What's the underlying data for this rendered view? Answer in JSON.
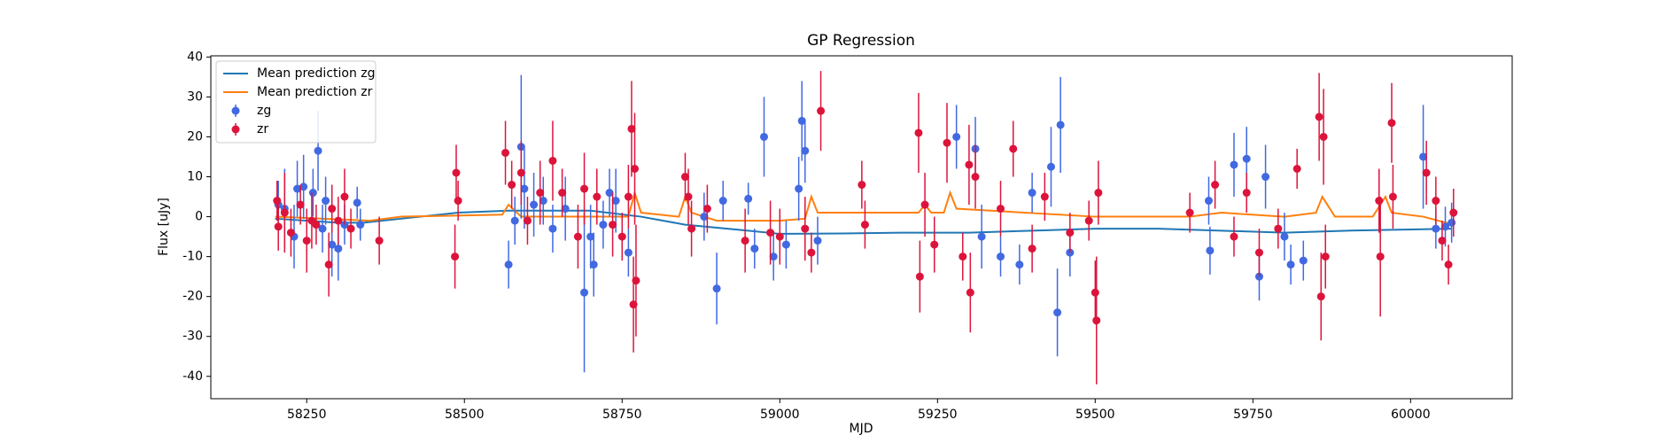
{
  "chart_data": {
    "type": "scatter",
    "title": "GP Regression",
    "xlabel": "MJD",
    "ylabel": "Flux [uJy]",
    "xlim": [
      58098,
      60161
    ],
    "ylim": [
      -45.6,
      40.3
    ],
    "xticks": [
      58250,
      58500,
      58750,
      59000,
      59250,
      59500,
      59750,
      60000
    ],
    "yticks": [
      -40,
      -30,
      -20,
      -10,
      0,
      10,
      20,
      30,
      40
    ],
    "legend": "upper left",
    "series": [
      {
        "name": "Mean prediction zg",
        "type": "line",
        "color": "#1f77b4",
        "x": [
          58200,
          58300,
          58340,
          58400,
          58490,
          58570,
          58600,
          58700,
          58780,
          58850,
          58950,
          59000,
          59100,
          59200,
          59300,
          59400,
          59500,
          59600,
          59700,
          59800,
          59900,
          60000,
          60065
        ],
        "values": [
          -0.5,
          -1.5,
          -1.5,
          -0.5,
          1,
          1.5,
          1.5,
          1.5,
          0,
          -2,
          -3.5,
          -4.3,
          -4.2,
          -4,
          -4,
          -3.5,
          -3,
          -3,
          -3.5,
          -4,
          -3.5,
          -3.2,
          -3
        ]
      },
      {
        "name": "Mean prediction zr",
        "type": "line",
        "color": "#ff7f0e",
        "x": [
          58200,
          58350,
          58400,
          58560,
          58570,
          58590,
          58760,
          58770,
          58780,
          58840,
          58850,
          58860,
          58900,
          59000,
          59040,
          59050,
          59060,
          59200,
          59220,
          59230,
          59240,
          59260,
          59270,
          59280,
          59500,
          59600,
          59650,
          59700,
          59800,
          59850,
          59860,
          59880,
          59940,
          59960,
          59970,
          60020,
          60068
        ],
        "values": [
          0,
          -1,
          0,
          0.5,
          3,
          0,
          0,
          6,
          1,
          0,
          5,
          1,
          -1,
          -1,
          -0.5,
          5,
          1,
          1,
          1,
          3,
          1,
          1,
          6,
          2,
          0,
          0,
          0,
          1,
          0,
          1,
          5,
          0,
          0,
          5,
          1,
          0,
          -2
        ]
      },
      {
        "name": "zg",
        "type": "errorbar",
        "color": "#4169e1",
        "x": [
          58205,
          58215,
          58230,
          58235,
          58245,
          58260,
          58268,
          58275,
          58280,
          58290,
          58300,
          58310,
          58330,
          58335,
          58570,
          58580,
          58590,
          58595,
          58610,
          58625,
          58640,
          58660,
          58690,
          58700,
          58705,
          58720,
          58730,
          58740,
          58760,
          58880,
          58900,
          58910,
          58950,
          58960,
          58975,
          58990,
          59010,
          59030,
          59035,
          59040,
          59060,
          59280,
          59310,
          59320,
          59350,
          59380,
          59400,
          59430,
          59440,
          59445,
          59460,
          59680,
          59682,
          59720,
          59740,
          59760,
          59770,
          59800,
          59810,
          59830,
          60020,
          60040,
          60055,
          60065
        ],
        "values": [
          3,
          2,
          -5,
          7,
          7.5,
          6,
          16.5,
          -3,
          4,
          -7,
          -8,
          -2,
          3.5,
          -2,
          -12,
          -1,
          17.5,
          7,
          3,
          4,
          -3,
          2,
          -19,
          -5,
          -12,
          -2,
          6,
          4,
          -9,
          0,
          -18,
          4,
          4.5,
          -8,
          20,
          -10,
          -7,
          7,
          24,
          16.5,
          -6,
          20,
          17,
          -5,
          -10,
          -12,
          6,
          12.5,
          -24,
          23,
          -9,
          4,
          -8.5,
          13,
          14.5,
          -15,
          10,
          -5,
          -12,
          -11,
          15,
          -3,
          -2.5,
          -1.5
        ],
        "errors": [
          6,
          10,
          8,
          7,
          8,
          6,
          10,
          6,
          6,
          8,
          8,
          5,
          4,
          4,
          6,
          6,
          18,
          10,
          8,
          6,
          6,
          8,
          20,
          8,
          8,
          6,
          6,
          8,
          6,
          6,
          9,
          5,
          4,
          5,
          10,
          6,
          6,
          8,
          10,
          8,
          6,
          8,
          8,
          8,
          5,
          5,
          5,
          10,
          11,
          12,
          6,
          6,
          6,
          8,
          8,
          6,
          8,
          6,
          5,
          5,
          13,
          5,
          5,
          5
        ]
      },
      {
        "name": "zr",
        "type": "errorbar",
        "color": "#dc143c",
        "x": [
          58203,
          58205,
          58215,
          58225,
          58240,
          58250,
          58258,
          58265,
          58285,
          58290,
          58300,
          58310,
          58320,
          58365,
          58485,
          58487,
          58490,
          58565,
          58575,
          58590,
          58600,
          58620,
          58640,
          58655,
          58680,
          58690,
          58710,
          58735,
          58750,
          58760,
          58765,
          58768,
          58770,
          58772,
          58850,
          58855,
          58860,
          58885,
          58945,
          58985,
          59000,
          59040,
          59050,
          59065,
          59130,
          59135,
          59220,
          59222,
          59230,
          59245,
          59265,
          59290,
          59300,
          59302,
          59310,
          59350,
          59370,
          59400,
          59420,
          59460,
          59490,
          59500,
          59502,
          59505,
          59650,
          59690,
          59720,
          59740,
          59760,
          59790,
          59820,
          59855,
          59858,
          59862,
          59865,
          59950,
          59952,
          59970,
          59972,
          60025,
          60040,
          60050,
          60060,
          60068
        ],
        "values": [
          4,
          -2.5,
          1,
          -4,
          3,
          -6,
          -1,
          -2,
          -12,
          2,
          -1,
          5,
          -3,
          -6,
          -10,
          11,
          4,
          16,
          8,
          11,
          -1,
          6,
          14,
          6,
          -5,
          7,
          5,
          -2,
          -5,
          5,
          22,
          -22,
          12,
          -16,
          10,
          5,
          -3,
          2,
          -6,
          -4,
          -5,
          -3,
          -9,
          26.5,
          8,
          -2,
          21,
          -15,
          3,
          -7,
          18.5,
          -10,
          13,
          -19,
          10,
          2,
          17,
          -8,
          5,
          -4,
          -1,
          -19,
          -26,
          6,
          1,
          8,
          -5,
          6,
          -9,
          -3,
          12,
          25,
          -20,
          20,
          -10,
          4,
          -10,
          23.5,
          5,
          11,
          4,
          -6,
          -12,
          1
        ],
        "errors": [
          5,
          6,
          10,
          6,
          5,
          8,
          7,
          5,
          8,
          6,
          6,
          7,
          5,
          6,
          8,
          7,
          5,
          8,
          6,
          8,
          6,
          8,
          10,
          6,
          8,
          9,
          7,
          8,
          6,
          8,
          12,
          12,
          14,
          14,
          6,
          7,
          7,
          6,
          8,
          8,
          7,
          8,
          5,
          10,
          6,
          6,
          10,
          9,
          8,
          7,
          10,
          6,
          10,
          10,
          8,
          7,
          7,
          6,
          6,
          5,
          5,
          8,
          16,
          8,
          5,
          6,
          5,
          5,
          6,
          5,
          5,
          11,
          11,
          12,
          8,
          8,
          15,
          10,
          8,
          8,
          6,
          5,
          5,
          6
        ]
      }
    ]
  }
}
